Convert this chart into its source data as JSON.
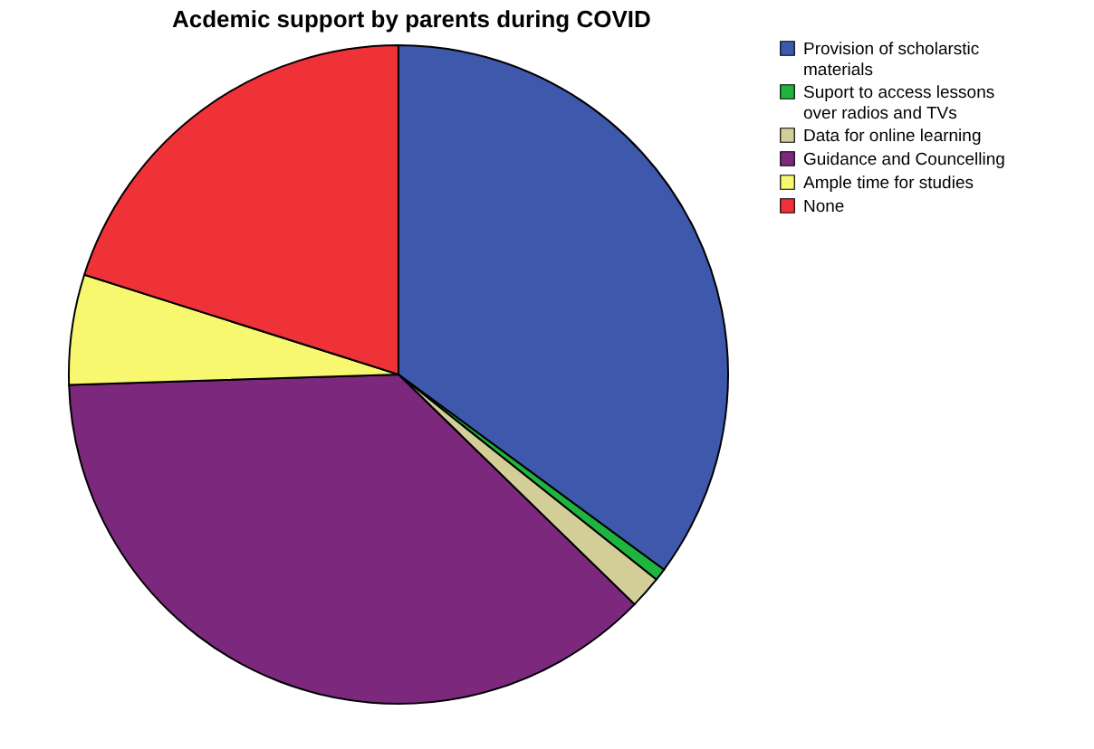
{
  "chart_data": {
    "type": "pie",
    "title": "Acdemic support by parents during COVID",
    "categories": [
      "Provision of scholarstic materials",
      "Suport to access lessons over radios and TVs",
      "Data for online learning",
      "Guidance and Councelling",
      "Ample time for studies",
      "None"
    ],
    "values": [
      35.1,
      0.6,
      1.6,
      37.2,
      5.4,
      20.1
    ],
    "colors": [
      "#3e58ac",
      "#1fb33f",
      "#d3ce97",
      "#7b287d",
      "#f8f870",
      "#ef3138"
    ],
    "legend": "top right"
  }
}
